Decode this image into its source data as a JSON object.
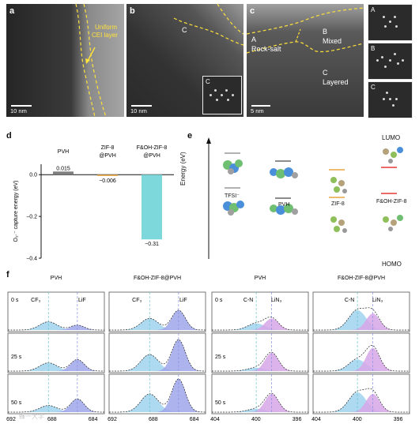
{
  "panels": {
    "a": {
      "label": "a",
      "annotation_line1": "Uniform",
      "annotation_line2": "CEI layer",
      "scale": "10 nm"
    },
    "b": {
      "label": "b",
      "region": "C",
      "inset": "C",
      "scale": "10 nm"
    },
    "c": {
      "label": "c",
      "region_a_line1": "A",
      "region_a_line2": "Rock-salt",
      "region_b_line1": "B",
      "region_b_line2": "Mixed",
      "region_c_line1": "C",
      "region_c_line2": "Layered",
      "scale": "5 nm"
    },
    "fft": [
      "A",
      "B",
      "C"
    ],
    "d": {
      "label": "d"
    },
    "e": {
      "label": "e",
      "ylabel": "Energy (eV)",
      "lumo": "LUMO",
      "homo": "HOMO",
      "tfsi": "TFSI⁻",
      "pvh": "PVH",
      "zif8": "ZIF-8",
      "fohzif8": "F&OH-ZIF-8"
    },
    "f": {
      "label": "f"
    }
  },
  "chart_data": [
    {
      "type": "bar",
      "panel": "d",
      "categories": [
        "PVH",
        "ZIF-8\n@PVH",
        "F&OH-ZIF-8\n@PVH"
      ],
      "values": [
        0.015,
        -0.006,
        -0.31
      ],
      "value_labels": [
        "0.015",
        "−0.006",
        "−0.31"
      ],
      "colors": [
        "#7f7f7f",
        "#e8a640",
        "#7dd8dc"
      ],
      "ylabel": "O₂·⁻ capture energy (eV)",
      "ylim": [
        -0.4,
        0.05
      ],
      "yticks": [
        0.0,
        -0.2,
        -0.4
      ],
      "ytick_labels": [
        "0.0",
        "−0.2",
        "−0.4"
      ]
    },
    {
      "type": "area",
      "panel": "f",
      "columns": [
        "PVH",
        "F&OH-ZIF-8@PVH",
        "PVH",
        "F&OH-ZIF-8@PVH"
      ],
      "rows": [
        "0 s",
        "25 s",
        "50 s"
      ],
      "peak_labels_f1s": [
        "CF₃",
        "LiF"
      ],
      "peak_labels_n1s": [
        "C-N",
        "LiN₃"
      ],
      "xlabel": "Binding energy (eV)",
      "xticks_f1s": [
        "692",
        "688",
        "684"
      ],
      "xticks_n1s": [
        "404",
        "400",
        "396"
      ],
      "reference_positions_eV": {
        "CF3": 688.8,
        "LiF": 685.0,
        "C-N": 399.8,
        "LiN3": 398.4
      }
    }
  ],
  "watermark": "蜂一大学"
}
